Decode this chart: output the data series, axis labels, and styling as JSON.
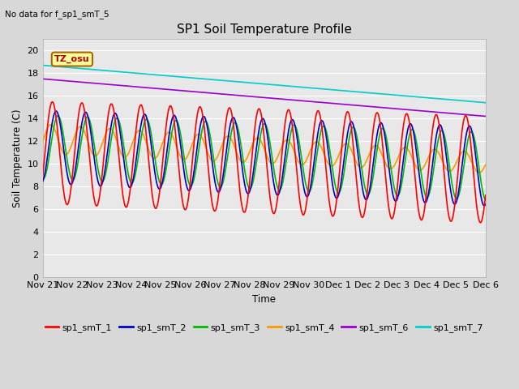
{
  "title": "SP1 Soil Temperature Profile",
  "subtitle": "No data for f_sp1_smT_5",
  "xlabel": "Time",
  "ylabel": "Soil Temperature (C)",
  "tz_label": "TZ_osu",
  "ylim": [
    0,
    21
  ],
  "yticks": [
    0,
    2,
    4,
    6,
    8,
    10,
    12,
    14,
    16,
    18,
    20
  ],
  "xtick_labels": [
    "Nov 21",
    "Nov 22",
    "Nov 23",
    "Nov 24",
    "Nov 25",
    "Nov 26",
    "Nov 27",
    "Nov 28",
    "Nov 29",
    "Nov 30",
    "Dec 1",
    "Dec 2",
    "Dec 3",
    "Dec 4",
    "Dec 5",
    "Dec 6"
  ],
  "background_color": "#d8d8d8",
  "plot_bg_color": "#e8e8e8",
  "series": {
    "sp1_smT_1": {
      "color": "#ff0000",
      "lw": 1.2
    },
    "sp1_smT_2": {
      "color": "#0000cc",
      "lw": 1.2
    },
    "sp1_smT_3": {
      "color": "#00bb00",
      "lw": 1.2
    },
    "sp1_smT_4": {
      "color": "#ff9900",
      "lw": 1.2
    },
    "sp1_smT_6": {
      "color": "#9900cc",
      "lw": 1.2
    },
    "sp1_smT_7": {
      "color": "#00cccc",
      "lw": 1.2
    }
  }
}
